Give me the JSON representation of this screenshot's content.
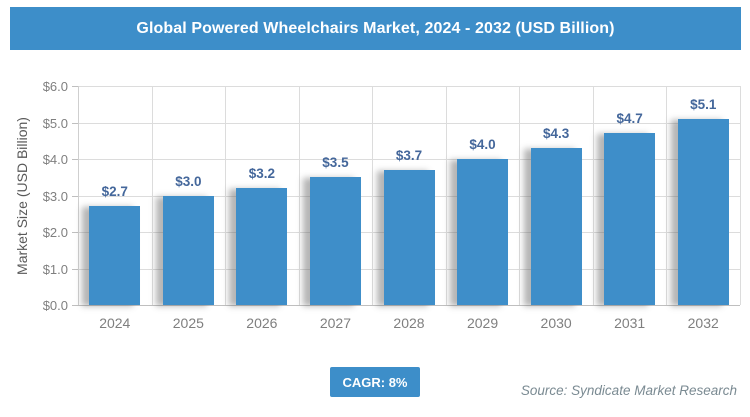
{
  "header": {
    "title": "Global Powered Wheelchairs Market, 2024 - 2032 (USD Billion)"
  },
  "chart_data": {
    "type": "bar",
    "title": "Global Powered Wheelchairs Market, 2024 - 2032 (USD Billion)",
    "categories": [
      "2024",
      "2025",
      "2026",
      "2027",
      "2028",
      "2029",
      "2030",
      "2031",
      "2032"
    ],
    "values": [
      2.7,
      3.0,
      3.2,
      3.5,
      3.7,
      4.0,
      4.3,
      4.7,
      5.1
    ],
    "data_labels": [
      "$2.7",
      "$3.0",
      "$3.2",
      "$3.5",
      "$3.7",
      "$4.0",
      "$4.3",
      "$4.7",
      "$5.1"
    ],
    "xlabel": "",
    "ylabel": "Market Size (USD Billion)",
    "ylim": [
      0,
      6
    ],
    "ytick_step": 1.0,
    "ytick_labels": [
      "$0.0",
      "$1.0",
      "$2.0",
      "$3.0",
      "$4.0",
      "$5.0",
      "$6.0"
    ],
    "grid": "on",
    "legend": "none"
  },
  "footer": {
    "cagr_label": "CAGR: 8%",
    "source": "Source: Syndicate Market Research"
  },
  "colors": {
    "accent_blue": "#3D8EC9",
    "bar_blue": "#3E8EC9",
    "data_label_blue": "#44679B",
    "tick_label_gray": "#7f7f7f",
    "axis_title_gray": "#595959",
    "gridline_gray": "#dcdcdc",
    "source_gray": "#7A8A92"
  }
}
